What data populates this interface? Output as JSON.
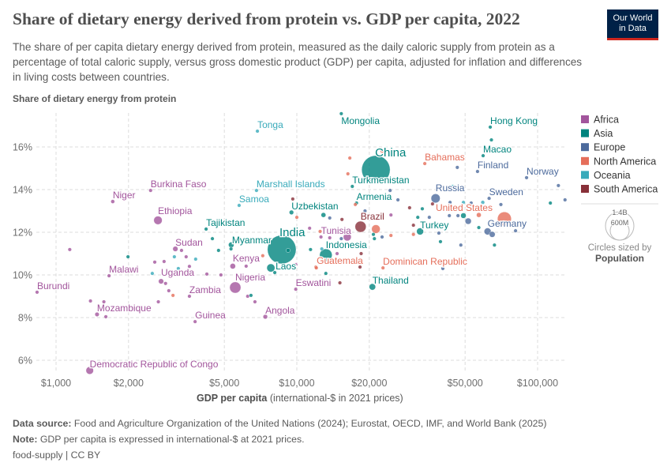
{
  "header": {
    "title": "Share of dietary energy derived from protein vs. GDP per capita, 2022",
    "subtitle": "The share of per capita dietary energy derived from protein, measured as the daily caloric supply from protein as a percentage of total caloric supply, versus gross domestic product (GDP) per capita, adjusted for inflation and differences in living costs between countries.",
    "logo_line1": "Our World",
    "logo_line2": "in Data"
  },
  "footer": {
    "source_label": "Data source:",
    "source_text": "Food and Agriculture Organization of the United Nations (2024); Eurostat, OECD, IMF, and World Bank (2025)",
    "note_label": "Note:",
    "note_text": "GDP per capita is expressed in international-$ at 2021 prices.",
    "slug": "food-supply | CC BY"
  },
  "chart_data": {
    "type": "scatter",
    "title": "Share of dietary energy derived from protein vs. GDP per capita, 2022",
    "ylabel": "Share of dietary energy from protein",
    "xlabel_bold": "GDP per capita",
    "xlabel_rest": "(international-$ in 2021 prices)",
    "x_scale": "log",
    "xlim": [
      780,
      140000
    ],
    "ylim": [
      5.5,
      17.6
    ],
    "grid": true,
    "x_ticks": [
      {
        "v": 1000,
        "label": "$1,000"
      },
      {
        "v": 2000,
        "label": "$2,000"
      },
      {
        "v": 5000,
        "label": "$5,000"
      },
      {
        "v": 10000,
        "label": "$10,000"
      },
      {
        "v": 20000,
        "label": "$20,000"
      },
      {
        "v": 50000,
        "label": "$50,000"
      },
      {
        "v": 100000,
        "label": "$100,000"
      }
    ],
    "y_ticks": [
      {
        "v": 6,
        "label": "6%"
      },
      {
        "v": 8,
        "label": "8%"
      },
      {
        "v": 10,
        "label": "10%"
      },
      {
        "v": 12,
        "label": "12%"
      },
      {
        "v": 14,
        "label": "14%"
      },
      {
        "v": 16,
        "label": "16%"
      }
    ],
    "legend_position": "right",
    "legend": [
      {
        "region": "Africa",
        "color": "#a2559c"
      },
      {
        "region": "Asia",
        "color": "#00847e"
      },
      {
        "region": "Europe",
        "color": "#4c6a9c"
      },
      {
        "region": "North America",
        "color": "#e56e5a"
      },
      {
        "region": "Oceania",
        "color": "#38aaba"
      },
      {
        "region": "South America",
        "color": "#883039"
      }
    ],
    "size_legend": {
      "large": "1.4B",
      "small": "600M",
      "caption": "Circles sized by",
      "variable": "Population"
    },
    "points": [
      {
        "entity": "China",
        "region": "Asia",
        "gdp": 21300,
        "value": 14.93,
        "pop": 1410
      },
      {
        "entity": "India",
        "region": "Asia",
        "gdp": 8660,
        "value": 11.19,
        "pop": 1430
      },
      {
        "entity": "United States",
        "region": "North America",
        "gdp": 72800,
        "value": 12.63,
        "pop": 335
      },
      {
        "entity": "Indonesia",
        "region": "Asia",
        "gdp": 13200,
        "value": 10.93,
        "pop": 275
      },
      {
        "entity": "Brazil",
        "region": "South America",
        "gdp": 18400,
        "value": 12.26,
        "pop": 215
      },
      {
        "entity": "Nigeria",
        "region": "Africa",
        "gdp": 5550,
        "value": 9.41,
        "pop": 220
      },
      {
        "entity": "Russia",
        "region": "Europe",
        "gdp": 37700,
        "value": 13.59,
        "pop": 144
      },
      {
        "entity": "Ethiopia",
        "region": "Africa",
        "gdp": 2650,
        "value": 12.56,
        "pop": 123
      },
      {
        "entity": "Democratic Republic of Congo",
        "region": "Africa",
        "gdp": 1380,
        "value": 5.52,
        "pop": 100
      },
      {
        "entity": "Germany",
        "region": "Europe",
        "gdp": 62000,
        "value": 12.04,
        "pop": 84
      },
      {
        "entity": "Turkey",
        "region": "Asia",
        "gdp": 32500,
        "value": 12.04,
        "pop": 85
      },
      {
        "entity": "Thailand",
        "region": "Asia",
        "gdp": 20600,
        "value": 9.44,
        "pop": 72
      },
      {
        "entity": "Myanmar",
        "region": "Asia",
        "gdp": 5340,
        "value": 11.41,
        "pop": 54
      },
      {
        "entity": "Kenya",
        "region": "Africa",
        "gdp": 5420,
        "value": 10.41,
        "pop": 54
      },
      {
        "entity": "Uganda",
        "region": "Africa",
        "gdp": 2730,
        "value": 9.7,
        "pop": 47
      },
      {
        "entity": "Sudan",
        "region": "Africa",
        "gdp": 3130,
        "value": 11.22,
        "pop": 47
      },
      {
        "entity": "Angola",
        "region": "Africa",
        "gdp": 7400,
        "value": 8.04,
        "pop": 36
      },
      {
        "entity": "Uzbekistan",
        "region": "Asia",
        "gdp": 9500,
        "value": 12.93,
        "pop": 35
      },
      {
        "entity": "Mozambique",
        "region": "Africa",
        "gdp": 1480,
        "value": 8.15,
        "pop": 33
      },
      {
        "entity": "Malawi",
        "region": "Africa",
        "gdp": 1660,
        "value": 9.96,
        "pop": 20
      },
      {
        "entity": "Niger",
        "region": "Africa",
        "gdp": 1720,
        "value": 13.44,
        "pop": 26
      },
      {
        "entity": "Burkina Faso",
        "region": "Africa",
        "gdp": 2470,
        "value": 13.96,
        "pop": 22
      },
      {
        "entity": "Zambia",
        "region": "Africa",
        "gdp": 3580,
        "value": 9.0,
        "pop": 20
      },
      {
        "entity": "Guatemala",
        "region": "North America",
        "gdp": 12000,
        "value": 10.37,
        "pop": 18
      },
      {
        "entity": "Burundi",
        "region": "Africa",
        "gdp": 834,
        "value": 9.19,
        "pop": 13
      },
      {
        "entity": "Guinea",
        "region": "Africa",
        "gdp": 3780,
        "value": 7.81,
        "pop": 14
      },
      {
        "entity": "Tunisia",
        "region": "Africa",
        "gdp": 12600,
        "value": 11.78,
        "pop": 12
      },
      {
        "entity": "Tajikistan",
        "region": "Asia",
        "gdp": 4200,
        "value": 12.15,
        "pop": 10
      },
      {
        "entity": "Dominican Republic",
        "region": "North America",
        "gdp": 22800,
        "value": 10.33,
        "pop": 11
      },
      {
        "entity": "Laos",
        "region": "Asia",
        "gdp": 8100,
        "value": 10.11,
        "pop": 8
      },
      {
        "entity": "Turkmenistan",
        "region": "Asia",
        "gdp": 17000,
        "value": 14.15,
        "pop": 7
      },
      {
        "entity": "Sweden",
        "region": "Europe",
        "gdp": 62900,
        "value": 13.59,
        "pop": 10
      },
      {
        "entity": "Finland",
        "region": "Europe",
        "gdp": 56300,
        "value": 14.85,
        "pop": 5
      },
      {
        "entity": "Norway",
        "region": "Europe",
        "gdp": 90000,
        "value": 14.56,
        "pop": 5
      },
      {
        "entity": "Hong Kong",
        "region": "Asia",
        "gdp": 63600,
        "value": 16.93,
        "pop": 7
      },
      {
        "entity": "Macao",
        "region": "Asia",
        "gdp": 59400,
        "value": 15.59,
        "pop": 1
      },
      {
        "entity": "Mongolia",
        "region": "Asia",
        "gdp": 15300,
        "value": 17.56,
        "pop": 3
      },
      {
        "entity": "Armenia",
        "region": "Asia",
        "gdp": 17700,
        "value": 13.37,
        "pop": 3
      },
      {
        "entity": "Bahamas",
        "region": "North America",
        "gdp": 34000,
        "value": 15.22,
        "pop": 1
      },
      {
        "entity": "Eswatini",
        "region": "Africa",
        "gdp": 9900,
        "value": 9.33,
        "pop": 1
      },
      {
        "entity": "Tonga",
        "region": "Oceania",
        "gdp": 6860,
        "value": 16.74,
        "pop": 1
      },
      {
        "entity": "Marshall Islands",
        "region": "Oceania",
        "gdp": 6800,
        "value": 13.96,
        "pop": 1
      },
      {
        "entity": "Samoa",
        "region": "Oceania",
        "gdp": 5760,
        "value": 13.26,
        "pop": 1
      },
      {
        "region": "Asia",
        "gdp": 7800,
        "value": 10.33,
        "pop": 115
      },
      {
        "region": "North America",
        "gdp": 21300,
        "value": 12.15,
        "pop": 128
      },
      {
        "region": "Africa",
        "gdp": 16200,
        "value": 11.78,
        "pop": 110
      },
      {
        "region": "Asia",
        "gdp": 12900,
        "value": 12.81,
        "pop": 40
      },
      {
        "region": "Asia",
        "gdp": 49200,
        "value": 12.78,
        "pop": 52
      },
      {
        "region": "Europe",
        "gdp": 51500,
        "value": 12.52,
        "pop": 68
      },
      {
        "region": "Europe",
        "gdp": 64800,
        "value": 11.9,
        "pop": 60
      },
      {
        "region": "Africa",
        "gdp": 1140,
        "value": 11.19
      },
      {
        "region": "Asia",
        "gdp": 1990,
        "value": 10.85,
        "pop": 16
      },
      {
        "region": "Africa",
        "gdp": 2570,
        "value": 10.6
      },
      {
        "region": "Africa",
        "gdp": 2810,
        "value": 10.63
      },
      {
        "region": "Oceania",
        "gdp": 2510,
        "value": 10.07
      },
      {
        "region": "Africa",
        "gdp": 2850,
        "value": 9.6
      },
      {
        "region": "Africa",
        "gdp": 2940,
        "value": 9.26
      },
      {
        "region": "Africa",
        "gdp": 2660,
        "value": 8.74
      },
      {
        "region": "North America",
        "gdp": 3060,
        "value": 9.04
      },
      {
        "region": "Africa",
        "gdp": 1390,
        "value": 8.78
      },
      {
        "region": "Africa",
        "gdp": 1580,
        "value": 8.74
      },
      {
        "region": "Africa",
        "gdp": 1610,
        "value": 8.04
      },
      {
        "region": "Oceania",
        "gdp": 3100,
        "value": 10.85
      },
      {
        "region": "Africa",
        "gdp": 3320,
        "value": 11.15
      },
      {
        "region": "Africa",
        "gdp": 3470,
        "value": 10.85
      },
      {
        "region": "Africa",
        "gdp": 3580,
        "value": 10.4
      },
      {
        "region": "Oceania",
        "gdp": 3800,
        "value": 10.74
      },
      {
        "region": "Oceania",
        "gdp": 3220,
        "value": 10.3
      },
      {
        "region": "Africa",
        "gdp": 4230,
        "value": 10.04
      },
      {
        "region": "Africa",
        "gdp": 4840,
        "value": 10.0,
        "pop": 6
      },
      {
        "region": "Asia",
        "gdp": 4460,
        "value": 11.7
      },
      {
        "region": "Asia",
        "gdp": 4730,
        "value": 11.15,
        "pop": 5
      },
      {
        "region": "Asia",
        "gdp": 5330,
        "value": 11.22,
        "pop": 17
      },
      {
        "region": "Africa",
        "gdp": 6160,
        "value": 10.41
      },
      {
        "region": "Africa",
        "gdp": 6250,
        "value": 9.0,
        "pop": 5
      },
      {
        "region": "Asia",
        "gdp": 6450,
        "value": 9.04
      },
      {
        "region": "Africa",
        "gdp": 6700,
        "value": 8.74,
        "pop": 5
      },
      {
        "region": "North America",
        "gdp": 7220,
        "value": 10.9
      },
      {
        "region": "South America",
        "gdp": 9620,
        "value": 13.56
      },
      {
        "region": "North America",
        "gdp": 10000,
        "value": 12.7
      },
      {
        "region": "Africa",
        "gdp": 11300,
        "value": 12.19
      },
      {
        "region": "North America",
        "gdp": 12500,
        "value": 12.04
      },
      {
        "region": "Asia",
        "gdp": 11400,
        "value": 11.19
      },
      {
        "region": "Oceania",
        "gdp": 12700,
        "value": 11.22
      },
      {
        "region": "Europe",
        "gdp": 13700,
        "value": 12.67,
        "pop": 6
      },
      {
        "region": "Africa",
        "gdp": 9900,
        "value": 10.48
      },
      {
        "region": "North America",
        "gdp": 12050,
        "value": 10.33
      },
      {
        "region": "Asia",
        "gdp": 13200,
        "value": 10.07
      },
      {
        "region": "Asia",
        "gdp": 9200,
        "value": 11.15,
        "pop": 30
      },
      {
        "region": "North America",
        "gdp": 16600,
        "value": 15.48
      },
      {
        "region": "North America",
        "gdp": 16300,
        "value": 14.74
      },
      {
        "region": "North America",
        "gdp": 22600,
        "value": 15.8
      },
      {
        "region": "Europe",
        "gdp": 24400,
        "value": 13.96
      },
      {
        "region": "Europe",
        "gdp": 26300,
        "value": 13.52
      },
      {
        "region": "North America",
        "gdp": 17500,
        "value": 13.3
      },
      {
        "region": "Europe",
        "gdp": 19200,
        "value": 13.0
      },
      {
        "region": "Africa",
        "gdp": 24600,
        "value": 12.81
      },
      {
        "region": "South America",
        "gdp": 15400,
        "value": 12.6,
        "pop": 5
      },
      {
        "region": "Africa",
        "gdp": 13700,
        "value": 11.74,
        "pop": 8
      },
      {
        "region": "Europe",
        "gdp": 15300,
        "value": 11.7
      },
      {
        "region": "Asia",
        "gdp": 20800,
        "value": 11.9
      },
      {
        "region": "Asia",
        "gdp": 21000,
        "value": 11.7
      },
      {
        "region": "Europe",
        "gdp": 22600,
        "value": 11.78
      },
      {
        "region": "North America",
        "gdp": 24600,
        "value": 11.85
      },
      {
        "region": "Africa",
        "gdp": 14700,
        "value": 11.0,
        "pop": 5
      },
      {
        "region": "South America",
        "gdp": 18500,
        "value": 11.0
      },
      {
        "region": "South America",
        "gdp": 18300,
        "value": 10.37,
        "pop": 5
      },
      {
        "region": "South America",
        "gdp": 15100,
        "value": 9.63
      },
      {
        "region": "South America",
        "gdp": 29400,
        "value": 13.15
      },
      {
        "region": "Asia",
        "gdp": 33200,
        "value": 13.1
      },
      {
        "region": "South America",
        "gdp": 30500,
        "value": 12.33
      },
      {
        "region": "Asia",
        "gdp": 31800,
        "value": 12.7,
        "pop": 6
      },
      {
        "region": "North America",
        "gdp": 30500,
        "value": 11.9
      },
      {
        "region": "Europe",
        "gdp": 35500,
        "value": 12.7
      },
      {
        "region": "South America",
        "gdp": 36600,
        "value": 13.33
      },
      {
        "region": "Europe",
        "gdp": 38900,
        "value": 11.96
      },
      {
        "region": "Asia",
        "gdp": 39500,
        "value": 11.56
      },
      {
        "region": "Europe",
        "gdp": 43300,
        "value": 13.4
      },
      {
        "region": "Europe",
        "gdp": 43000,
        "value": 12.78
      },
      {
        "region": "Oceania",
        "gdp": 44400,
        "value": 14.15
      },
      {
        "region": "Europe",
        "gdp": 46400,
        "value": 15.04
      },
      {
        "region": "Europe",
        "gdp": 46700,
        "value": 12.78
      },
      {
        "region": "Oceania",
        "gdp": 49200,
        "value": 13.4
      },
      {
        "region": "Europe",
        "gdp": 48000,
        "value": 11.4
      },
      {
        "region": "Europe",
        "gdp": 53000,
        "value": 13.37
      },
      {
        "region": "Europe",
        "gdp": 40400,
        "value": 10.3
      },
      {
        "region": "Asia",
        "gdp": 57000,
        "value": 12.22
      },
      {
        "region": "North America",
        "gdp": 57000,
        "value": 12.81,
        "pop": 40
      },
      {
        "region": "Oceania",
        "gdp": 59200,
        "value": 13.4,
        "pop": 26
      },
      {
        "region": "Asia",
        "gdp": 66200,
        "value": 11.4,
        "pop": 6
      },
      {
        "region": "Europe",
        "gdp": 70400,
        "value": 13.3
      },
      {
        "region": "Europe",
        "gdp": 81000,
        "value": 12.07
      },
      {
        "region": "Asia",
        "gdp": 64300,
        "value": 16.33
      },
      {
        "region": "Europe",
        "gdp": 122000,
        "value": 14.19
      },
      {
        "region": "Europe",
        "gdp": 130000,
        "value": 13.52
      },
      {
        "region": "Asia",
        "gdp": 113000,
        "value": 13.37
      }
    ]
  }
}
